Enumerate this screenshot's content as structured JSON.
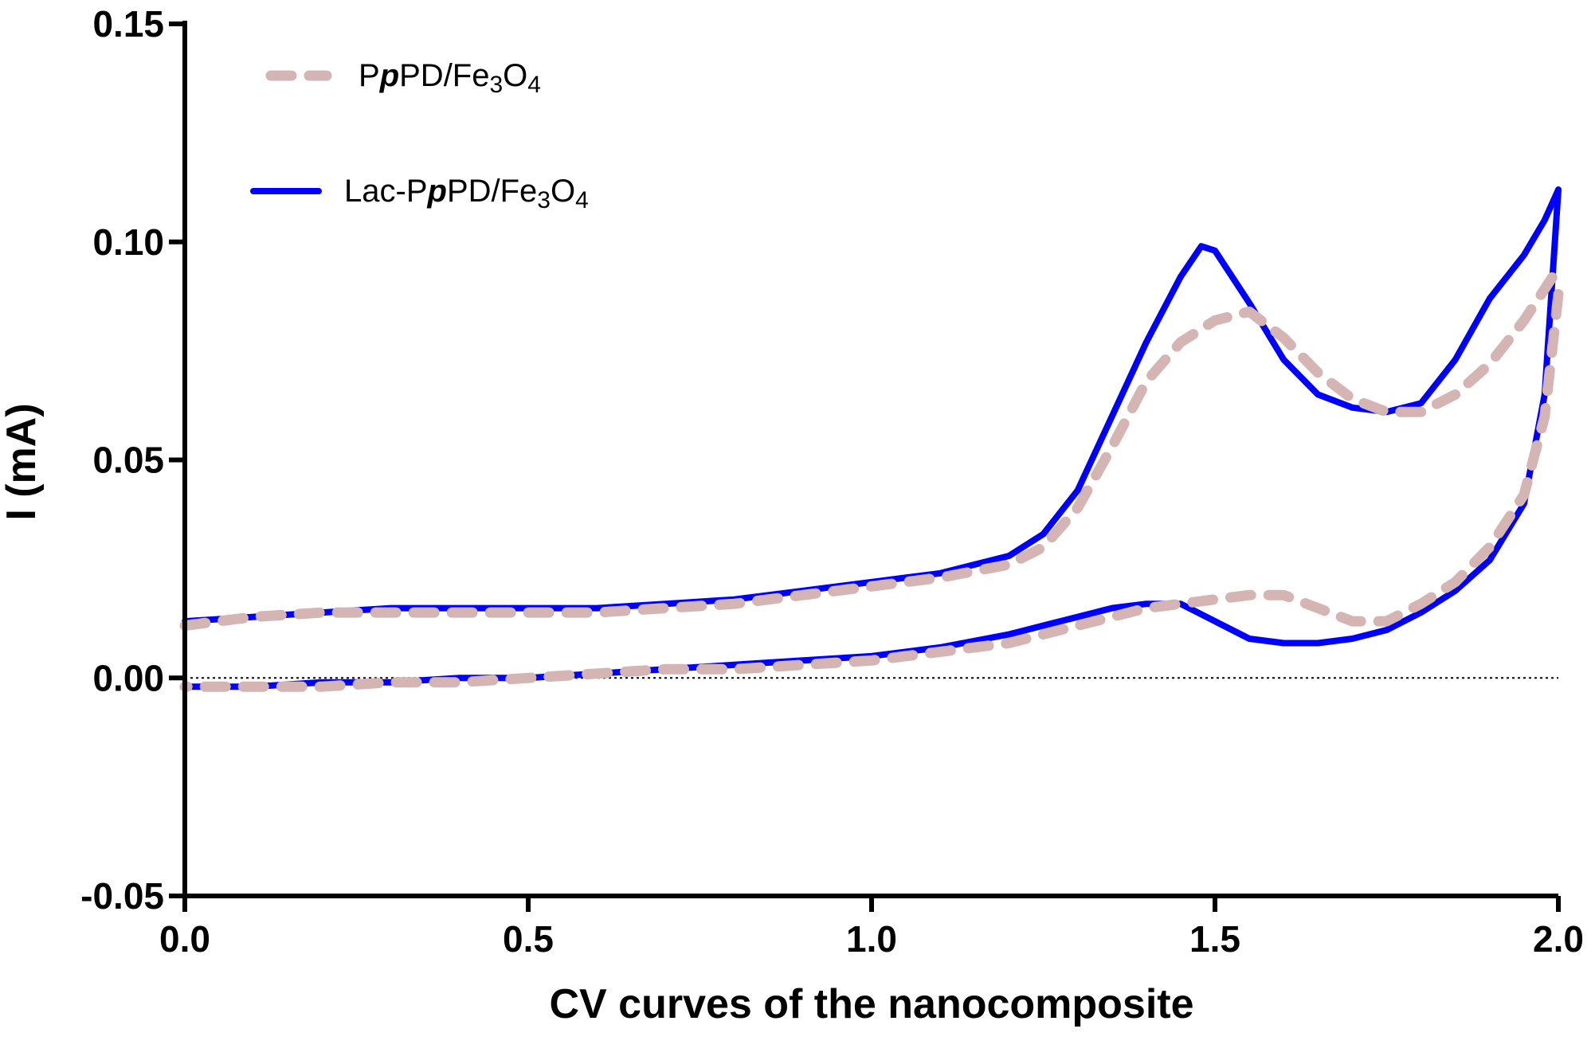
{
  "chart_data": {
    "type": "line",
    "title": "",
    "xlabel": "CV curves of the nanocomposite",
    "ylabel": "I (mA)",
    "xlim": [
      0.0,
      2.0
    ],
    "ylim": [
      -0.05,
      0.15
    ],
    "x_ticks": [
      "0.0",
      "0.5",
      "1.0",
      "1.5",
      "2.0"
    ],
    "y_ticks": [
      "-0.05",
      "0.00",
      "0.05",
      "0.10",
      "0.15"
    ],
    "legend_position": "top-left",
    "zero_reference_line": true,
    "grid": false,
    "series": [
      {
        "name": "PpPD/Fe3O4",
        "legend_parts": [
          "P",
          "p",
          "PD/Fe",
          "3",
          "O",
          "4"
        ],
        "color": "#d4b5b3",
        "style": "dashed",
        "forward_scan": {
          "x": [
            0.0,
            0.1,
            0.2,
            0.3,
            0.4,
            0.5,
            0.6,
            0.7,
            0.8,
            0.9,
            1.0,
            1.1,
            1.2,
            1.25,
            1.3,
            1.35,
            1.4,
            1.45,
            1.5,
            1.55,
            1.6,
            1.65,
            1.7,
            1.75,
            1.8,
            1.85,
            1.9,
            1.95,
            2.0
          ],
          "y": [
            0.012,
            0.014,
            0.015,
            0.015,
            0.015,
            0.015,
            0.015,
            0.016,
            0.017,
            0.019,
            0.021,
            0.023,
            0.026,
            0.03,
            0.039,
            0.053,
            0.068,
            0.077,
            0.082,
            0.084,
            0.078,
            0.07,
            0.064,
            0.061,
            0.061,
            0.065,
            0.072,
            0.082,
            0.094
          ]
        },
        "reverse_scan": {
          "x": [
            2.0,
            1.98,
            1.95,
            1.9,
            1.85,
            1.8,
            1.75,
            1.7,
            1.65,
            1.6,
            1.55,
            1.5,
            1.45,
            1.4,
            1.35,
            1.3,
            1.25,
            1.2,
            1.1,
            1.0,
            0.9,
            0.8,
            0.7,
            0.6,
            0.5,
            0.4,
            0.3,
            0.2,
            0.1,
            0.0
          ],
          "y": [
            0.088,
            0.06,
            0.042,
            0.03,
            0.022,
            0.017,
            0.013,
            0.013,
            0.016,
            0.019,
            0.019,
            0.018,
            0.017,
            0.016,
            0.014,
            0.012,
            0.01,
            0.008,
            0.006,
            0.004,
            0.003,
            0.002,
            0.002,
            0.001,
            0.0,
            -0.001,
            -0.001,
            -0.002,
            -0.002,
            -0.002
          ]
        }
      },
      {
        "name": "Lac-PpPD/Fe3O4",
        "legend_parts": [
          "Lac-P",
          "p",
          "PD/Fe",
          "3",
          "O",
          "4"
        ],
        "color": "#0000ff",
        "style": "solid",
        "forward_scan": {
          "x": [
            0.0,
            0.1,
            0.2,
            0.3,
            0.4,
            0.5,
            0.6,
            0.7,
            0.8,
            0.9,
            1.0,
            1.1,
            1.2,
            1.25,
            1.3,
            1.35,
            1.4,
            1.45,
            1.48,
            1.5,
            1.55,
            1.6,
            1.65,
            1.7,
            1.75,
            1.8,
            1.85,
            1.9,
            1.95,
            1.98,
            2.0
          ],
          "y": [
            0.013,
            0.014,
            0.015,
            0.016,
            0.016,
            0.016,
            0.016,
            0.017,
            0.018,
            0.02,
            0.022,
            0.024,
            0.028,
            0.033,
            0.043,
            0.06,
            0.077,
            0.092,
            0.099,
            0.098,
            0.086,
            0.073,
            0.065,
            0.062,
            0.061,
            0.063,
            0.073,
            0.087,
            0.097,
            0.105,
            0.112
          ]
        },
        "reverse_scan": {
          "x": [
            2.0,
            1.98,
            1.95,
            1.9,
            1.85,
            1.8,
            1.75,
            1.7,
            1.65,
            1.6,
            1.55,
            1.5,
            1.45,
            1.4,
            1.35,
            1.3,
            1.25,
            1.2,
            1.1,
            1.0,
            0.9,
            0.8,
            0.7,
            0.6,
            0.5,
            0.4,
            0.3,
            0.2,
            0.1,
            0.0
          ],
          "y": [
            0.112,
            0.065,
            0.04,
            0.027,
            0.02,
            0.015,
            0.011,
            0.009,
            0.008,
            0.008,
            0.009,
            0.013,
            0.017,
            0.017,
            0.016,
            0.014,
            0.012,
            0.01,
            0.007,
            0.005,
            0.004,
            0.003,
            0.002,
            0.001,
            0.0,
            0.0,
            -0.001,
            -0.001,
            -0.002,
            -0.002
          ]
        }
      }
    ]
  }
}
